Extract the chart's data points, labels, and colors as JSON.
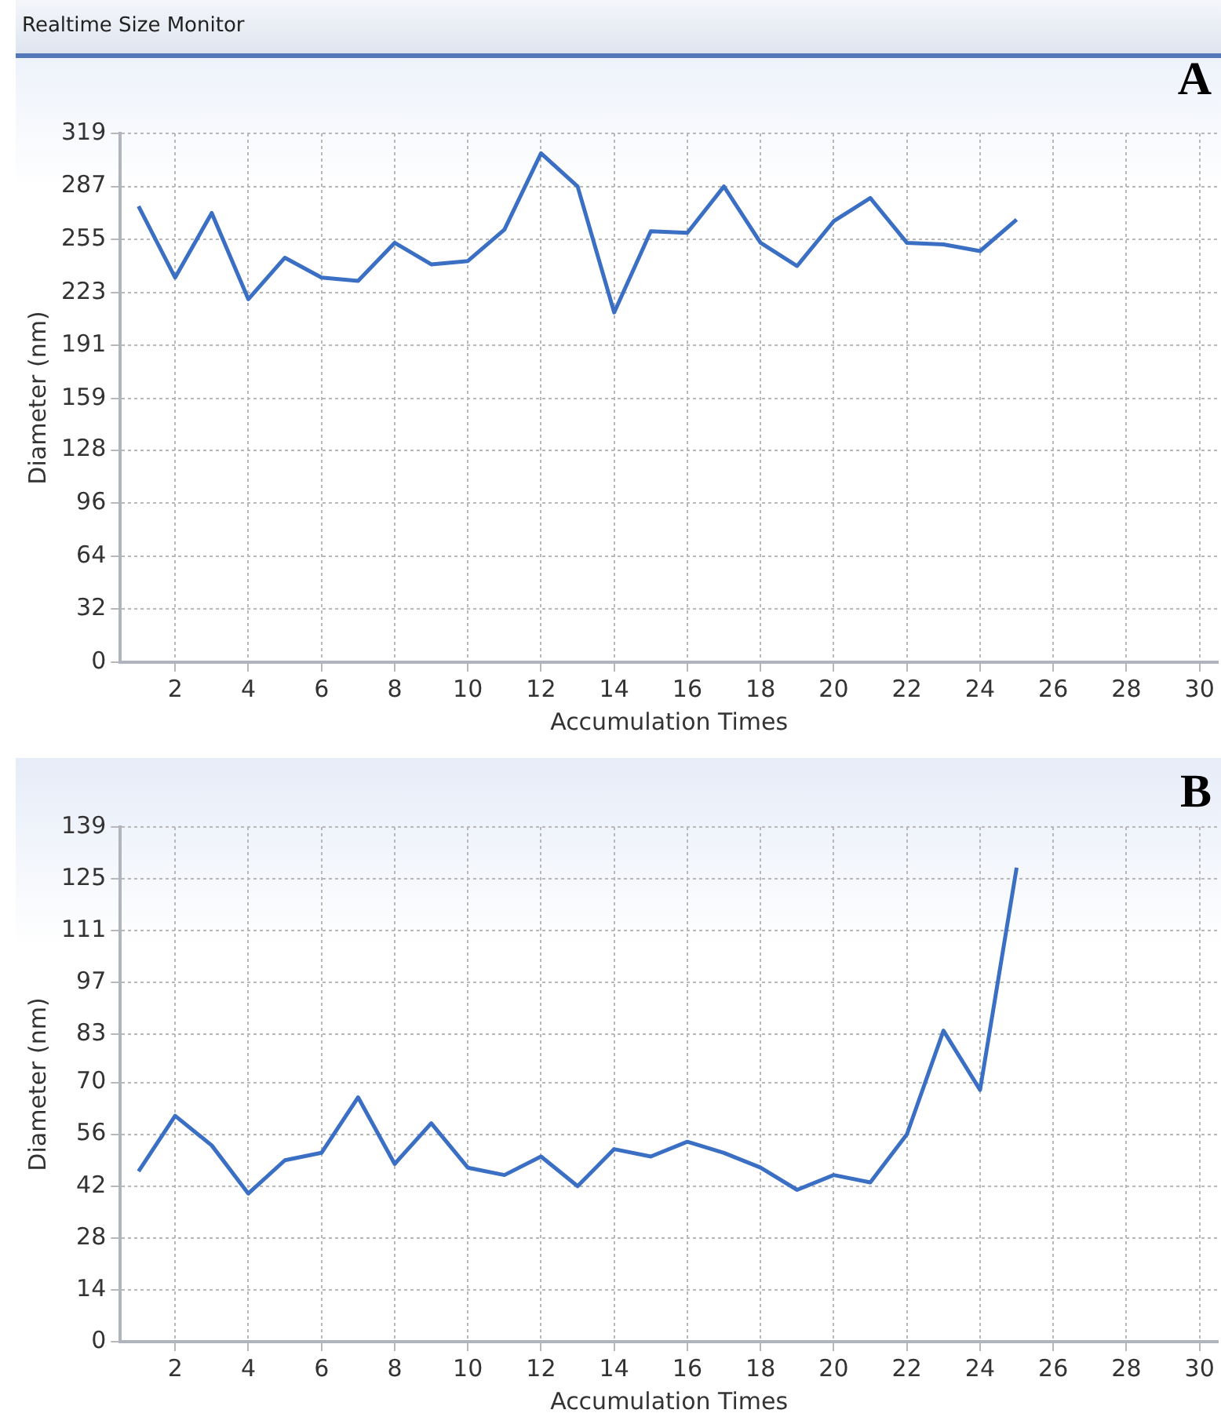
{
  "chart_data": [
    {
      "type": "line",
      "title": "Realtime Size Monitor",
      "xlabel": "Accumulation Times",
      "ylabel": "Diameter (nm)",
      "annotations": [
        "A"
      ],
      "x": [
        1,
        2,
        3,
        4,
        5,
        6,
        7,
        8,
        9,
        10,
        11,
        12,
        13,
        14,
        15,
        16,
        17,
        18,
        19,
        20,
        21,
        22,
        23,
        24,
        25
      ],
      "series": [
        {
          "color": "#3a6fc4",
          "values": [
            275,
            232,
            271,
            219,
            244,
            232,
            230,
            253,
            240,
            242,
            261,
            307,
            287,
            211,
            260,
            259,
            287,
            253,
            239,
            266,
            280,
            253,
            252,
            248,
            267
          ]
        }
      ],
      "xlim": [
        0.5,
        30.5
      ],
      "xticks": [
        2,
        4,
        6,
        8,
        10,
        12,
        14,
        16,
        18,
        20,
        22,
        24,
        26,
        28,
        30
      ],
      "ylim": [
        0,
        319
      ],
      "yticks": [
        0,
        32,
        64,
        96,
        128,
        159,
        191,
        223,
        255,
        287,
        319
      ],
      "grid": true,
      "legend": false,
      "marker": "none",
      "line_style": "solid"
    },
    {
      "type": "line",
      "xlabel": "Accumulation Times",
      "ylabel": "Diameter (nm)",
      "annotations": [
        "B"
      ],
      "x": [
        1,
        2,
        3,
        4,
        5,
        6,
        7,
        8,
        9,
        10,
        11,
        12,
        13,
        14,
        15,
        16,
        17,
        18,
        19,
        20,
        21,
        22,
        23,
        24,
        25
      ],
      "series": [
        {
          "color": "#3a6fc4",
          "values": [
            46,
            61,
            53,
            40,
            49,
            51,
            66,
            48,
            59,
            47,
            45,
            50,
            42,
            52,
            50,
            54,
            51,
            47,
            41,
            45,
            43,
            56,
            84,
            68,
            128
          ]
        }
      ],
      "xlim": [
        0.5,
        30.5
      ],
      "xticks": [
        2,
        4,
        6,
        8,
        10,
        12,
        14,
        16,
        18,
        20,
        22,
        24,
        26,
        28,
        30
      ],
      "ylim": [
        0,
        139
      ],
      "yticks": [
        0,
        14,
        28,
        42,
        56,
        70,
        83,
        97,
        111,
        125,
        139
      ],
      "grid": true,
      "legend": false,
      "marker": "none",
      "line_style": "solid"
    }
  ]
}
